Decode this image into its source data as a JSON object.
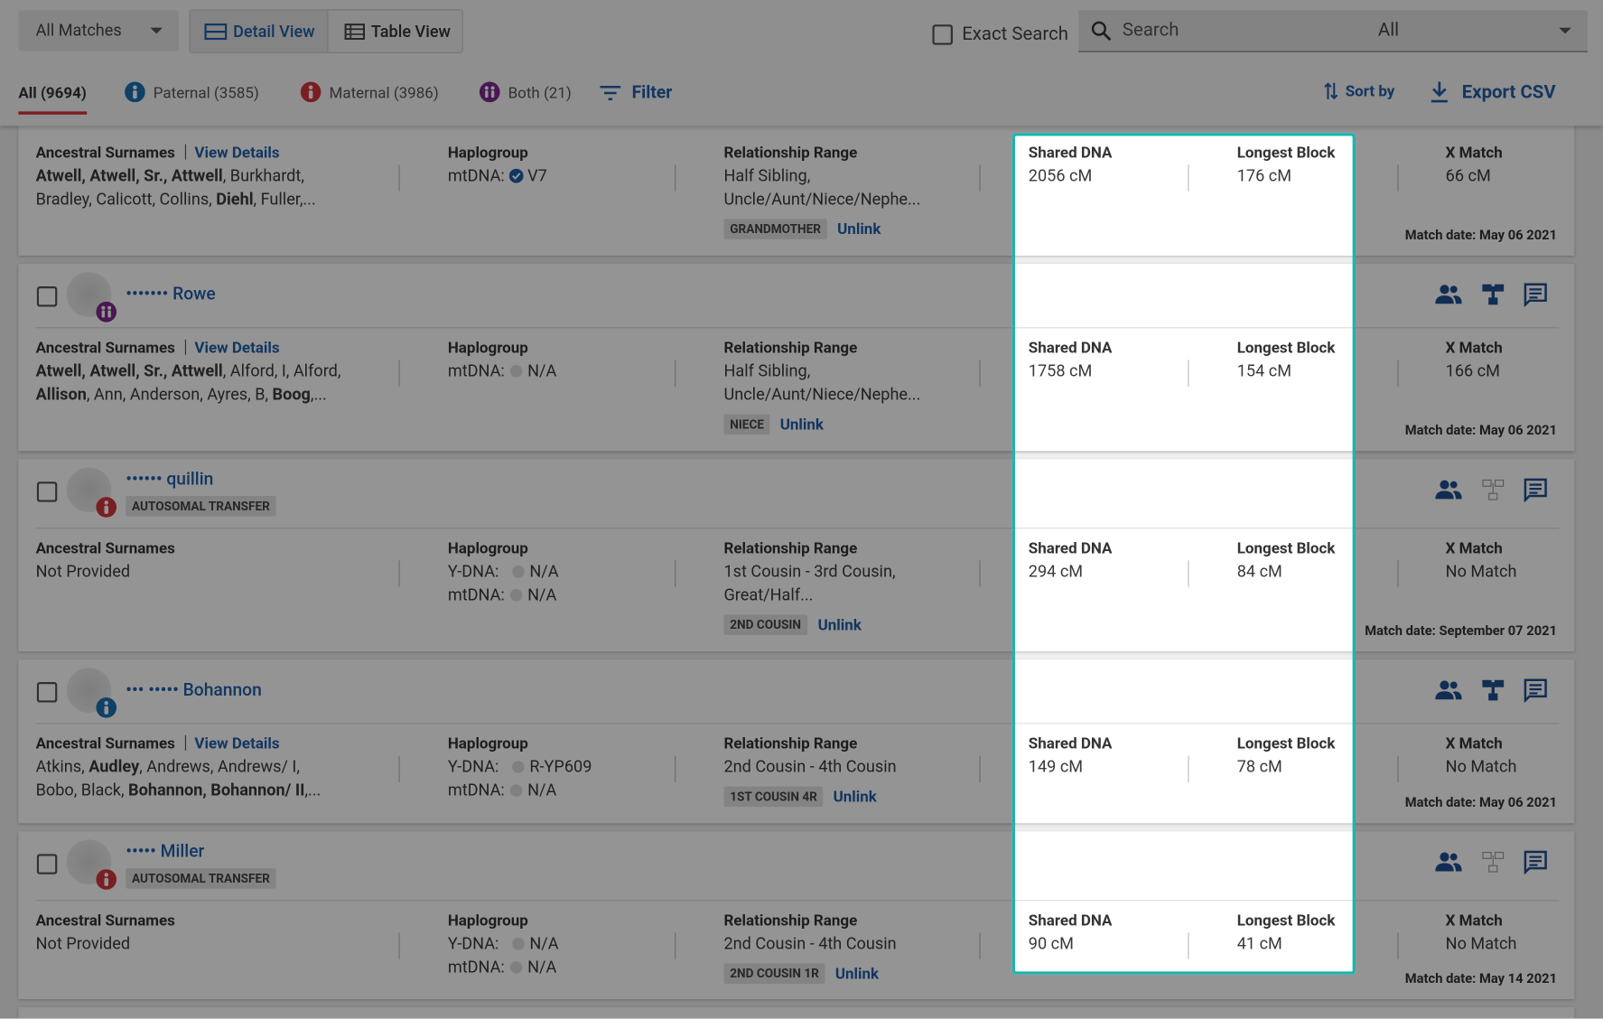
{
  "toolbar": {
    "all_matches": "All Matches",
    "detail_view": "Detail View",
    "table_view": "Table View",
    "exact_search": "Exact Search",
    "search": "Search",
    "search_scope": "All"
  },
  "tabs": {
    "all": "All (9694)",
    "paternal": "Paternal (3585)",
    "maternal": "Maternal (3986)",
    "both": "Both (21)",
    "filter": "Filter",
    "sort_by": "Sort by",
    "export": "Export CSV"
  },
  "labels": {
    "surnames": "Ancestral Surnames",
    "view_details": "View Details",
    "haplogroup": "Haplogroup",
    "relationship": "Relationship Range",
    "shared_dna": "Shared DNA",
    "longest_block": "Longest Block",
    "x_match": "X Match",
    "unlink": "Unlink",
    "transfer": "AUTOSOMAL TRANSFER"
  },
  "matches": [
    {
      "name": null,
      "badge": null,
      "transfer": false,
      "details_link": true,
      "tree": true,
      "surnames": [
        {
          "text": "Atwell, Atwell, Sr., Attwell",
          "bold": true
        },
        {
          "text": ", Burkhardt,",
          "bold": false
        },
        {
          "text": "Bradley, Calicott, Collins, ",
          "bold": false,
          "newline": true
        },
        {
          "text": "Diehl",
          "bold": true
        },
        {
          "text": ", Fuller,...",
          "bold": false
        }
      ],
      "haplogroup": [
        {
          "label": "mtDNA:",
          "value": "V7",
          "verified": true
        }
      ],
      "relationship": [
        "Half Sibling,",
        "Uncle/Aunt/Niece/Nephe..."
      ],
      "tag": "GRANDMOTHER",
      "shared_dna": "2056 cM",
      "longest_block": "176 cM",
      "x_match": "66 cM",
      "date": "Match date: May 06 2021"
    },
    {
      "name": "••••••• Rowe",
      "badge": "both",
      "transfer": false,
      "details_link": true,
      "tree": true,
      "surnames": [
        {
          "text": "Atwell, Atwell, Sr., Attwell",
          "bold": true
        },
        {
          "text": ", Alford, I, Alford,",
          "bold": false
        },
        {
          "text": "Allison",
          "bold": true,
          "newline": true
        },
        {
          "text": ", Ann, Anderson, Ayres, B, ",
          "bold": false
        },
        {
          "text": "Boog",
          "bold": true
        },
        {
          "text": ",...",
          "bold": false
        }
      ],
      "haplogroup": [
        {
          "label": "mtDNA:",
          "value": "N/A",
          "verified": false
        }
      ],
      "relationship": [
        "Half Sibling,",
        "Uncle/Aunt/Niece/Nephe..."
      ],
      "tag": "NIECE",
      "shared_dna": "1758 cM",
      "longest_block": "154 cM",
      "x_match": "166 cM",
      "date": "Match date: May 06 2021"
    },
    {
      "name": "•••••• quillin",
      "badge": "maternal",
      "transfer": true,
      "details_link": false,
      "tree": false,
      "surnames": [
        {
          "text": "Not Provided",
          "bold": false
        }
      ],
      "haplogroup": [
        {
          "label": "Y-DNA:",
          "value": "N/A",
          "verified": false
        },
        {
          "label": "mtDNA:",
          "value": "N/A",
          "verified": false
        }
      ],
      "relationship": [
        "1st Cousin - 3rd Cousin,",
        "Great/Half..."
      ],
      "tag": "2ND COUSIN",
      "shared_dna": "294 cM",
      "longest_block": "84 cM",
      "x_match": "No Match",
      "date": "Match date: September 07 2021"
    },
    {
      "name": "••• ••••• Bohannon",
      "badge": "paternal",
      "transfer": false,
      "details_link": true,
      "tree": true,
      "surnames": [
        {
          "text": "Atkins, ",
          "bold": false
        },
        {
          "text": "Audley",
          "bold": true
        },
        {
          "text": ", Andrews, Andrews/ I,",
          "bold": false
        },
        {
          "text": "Bobo, Black, ",
          "bold": false,
          "newline": true
        },
        {
          "text": "Bohannon, Bohannon/ II",
          "bold": true
        },
        {
          "text": ",...",
          "bold": false
        }
      ],
      "haplogroup": [
        {
          "label": "Y-DNA:",
          "value": "R-YP609",
          "verified": false
        },
        {
          "label": "mtDNA:",
          "value": "N/A",
          "verified": false
        }
      ],
      "relationship": [
        "2nd Cousin - 4th Cousin"
      ],
      "tag": "1ST COUSIN 4R",
      "shared_dna": "149 cM",
      "longest_block": "78 cM",
      "x_match": "No Match",
      "date": "Match date: May 06 2021"
    },
    {
      "name": "••••• Miller",
      "badge": "maternal",
      "transfer": true,
      "details_link": false,
      "tree": false,
      "surnames": [
        {
          "text": "Not Provided",
          "bold": false
        }
      ],
      "haplogroup": [
        {
          "label": "Y-DNA:",
          "value": "N/A",
          "verified": false
        },
        {
          "label": "mtDNA:",
          "value": "N/A",
          "verified": false
        }
      ],
      "relationship": [
        "2nd Cousin - 4th Cousin"
      ],
      "tag": "2ND COUSIN 1R",
      "shared_dna": "90 cM",
      "longest_block": "41 cM",
      "x_match": "No Match",
      "date": "Match date: May 14 2021"
    }
  ]
}
